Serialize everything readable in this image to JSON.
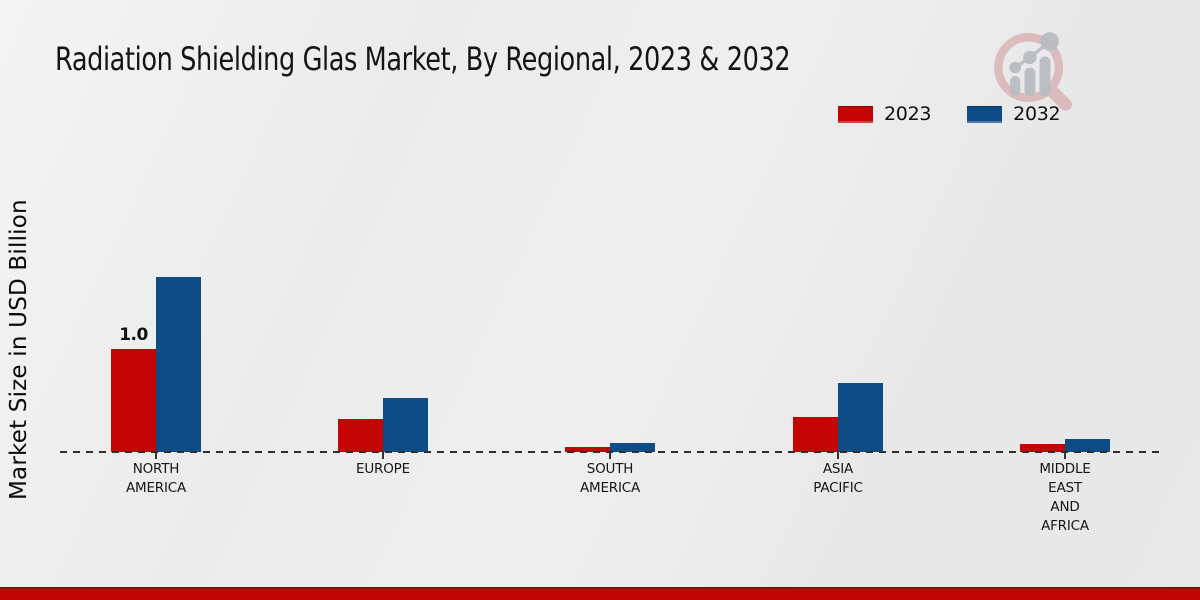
{
  "page": {
    "title": "Radiation Shielding Glas Market, By Regional, 2023 & 2032"
  },
  "colors": {
    "bar_2023_red": "#c40505",
    "bar_2032_blue": "#0d4c87",
    "footer_band_red": "#c10505",
    "footer_band_edge": "#8f0a0a",
    "axis_dash": "#2e2e2e",
    "logo_ring_pink": "#cf8d94",
    "logo_bars_gray": "#b9bdc2"
  },
  "chart_data": {
    "type": "bar",
    "title": "Radiation Shielding Glas Market, By Regional, 2023 & 2032",
    "xlabel": "",
    "ylabel": "Market Size in USD Billion",
    "ylim": [
      0,
      2.0
    ],
    "grid": false,
    "legend_position": "top-right",
    "baseline_style": "dashed",
    "categories": [
      "NORTH AMERICA",
      "EUROPE",
      "SOUTH AMERICA",
      "ASIA PACIFIC",
      "MIDDLE EAST AND AFRICA"
    ],
    "category_label_lines": [
      [
        "NORTH",
        "AMERICA"
      ],
      [
        "EUROPE"
      ],
      [
        "SOUTH",
        "AMERICA"
      ],
      [
        "ASIA",
        "PACIFIC"
      ],
      [
        "MIDDLE",
        "EAST",
        "AND",
        "AFRICA"
      ]
    ],
    "series": [
      {
        "name": "2023",
        "color": "#c40505",
        "values": [
          1.0,
          0.32,
          0.05,
          0.34,
          0.08
        ],
        "value_labels": [
          "1.0",
          "",
          "",
          "",
          ""
        ]
      },
      {
        "name": "2032",
        "color": "#0d4c87",
        "values": [
          1.7,
          0.52,
          0.09,
          0.67,
          0.13
        ],
        "value_labels": [
          "",
          "",
          "",
          "",
          ""
        ]
      }
    ]
  }
}
